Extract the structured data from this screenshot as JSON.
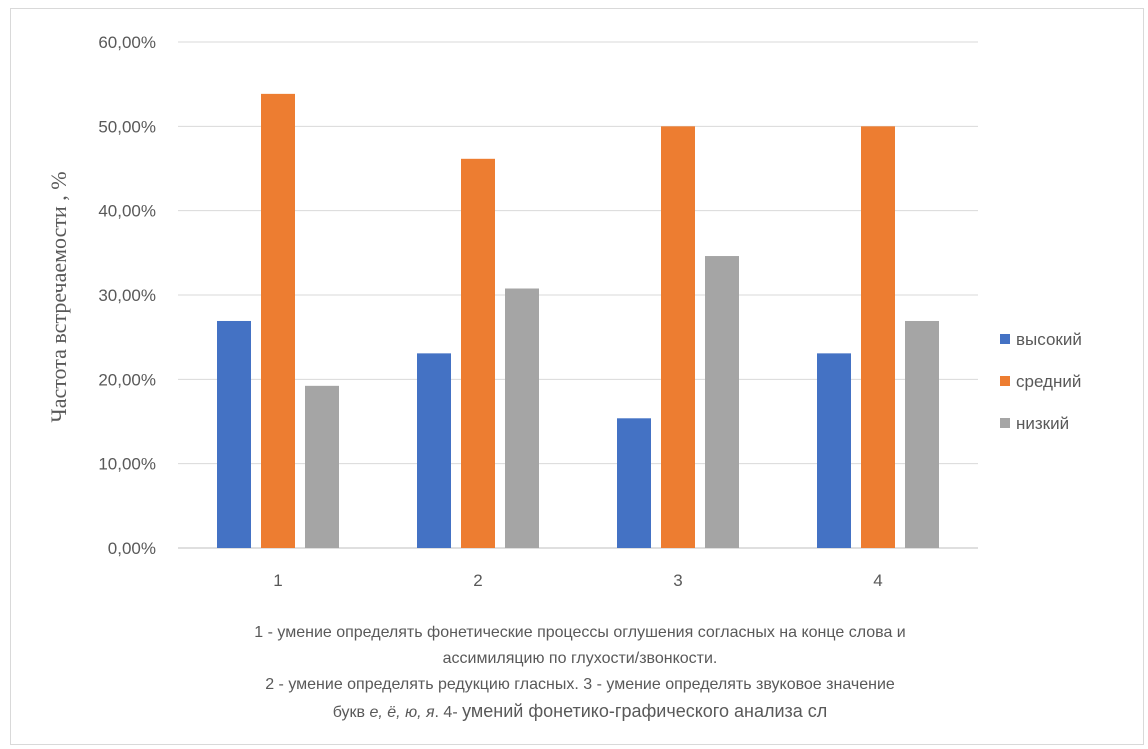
{
  "chart_data": {
    "type": "bar",
    "categories": [
      "1",
      "2",
      "3",
      "4"
    ],
    "series": [
      {
        "name": "высокий",
        "color": "#4472c4",
        "values": [
          0.2692,
          0.2308,
          0.1538,
          0.2308
        ]
      },
      {
        "name": "средний",
        "color": "#ed7d31",
        "values": [
          0.5385,
          0.4615,
          0.5,
          0.5
        ]
      },
      {
        "name": "низкий",
        "color": "#a5a5a5",
        "values": [
          0.1923,
          0.3077,
          0.3462,
          0.2692
        ]
      }
    ],
    "ylabel": "Частота встречаемости , %",
    "ylim": [
      0,
      0.6
    ],
    "yticks": [
      "0,00%",
      "10,00%",
      "20,00%",
      "30,00%",
      "40,00%",
      "50,00%",
      "60,00%"
    ],
    "grid": true,
    "legend": "right"
  },
  "caption": {
    "line1": "1 - умение определять фонетические процессы оглушения согласных на конце слова и",
    "line2": "ассимиляцию по глухости/звонкости.",
    "line3": "2 - умение определять редукцию гласных.  3 - умение определять звуковое значение",
    "line4a": "букв ",
    "line4_letters": "е, ё, ю, я",
    "line4b": ". 4- ",
    "line4c": "умений фонетико-графического анализа сл"
  }
}
